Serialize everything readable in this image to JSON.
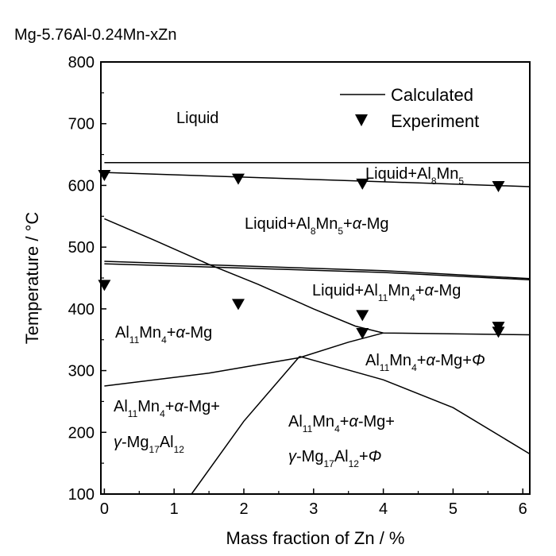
{
  "chart_data": {
    "type": "line",
    "title": "Mg-5.76Al-0.24Mn-xZn",
    "xlabel": "Mass fraction of Zn / %",
    "ylabel": "Temperature / °C",
    "xlim": [
      -0.05,
      6.1
    ],
    "ylim": [
      100,
      800
    ],
    "xticks": [
      0,
      1,
      2,
      3,
      4,
      5,
      6
    ],
    "yticks": [
      100,
      200,
      300,
      400,
      500,
      600,
      700,
      800
    ],
    "grid": false,
    "legend": {
      "placement": "top-right",
      "entries": [
        {
          "name": "Calculated",
          "marker": "line"
        },
        {
          "name": "Experiment",
          "marker": "down-triangle"
        }
      ]
    },
    "calculated_lines": [
      {
        "x": [
          0,
          6.1
        ],
        "y": [
          637,
          637
        ]
      },
      {
        "x": [
          0,
          6.1
        ],
        "y": [
          621,
          598
        ]
      },
      {
        "x": [
          0,
          4.0,
          6.1
        ],
        "y": [
          477,
          462,
          449
        ]
      },
      {
        "x": [
          0,
          4.0,
          6.1
        ],
        "y": [
          473,
          459,
          447
        ]
      },
      {
        "x": [
          0,
          0.7,
          1.5,
          2.2,
          3.0,
          3.6,
          4.0,
          6.1
        ],
        "y": [
          546,
          512,
          472,
          440,
          400,
          372,
          361,
          358
        ]
      },
      {
        "x": [
          0,
          1.5,
          2.8,
          3.5,
          4.0
        ],
        "y": [
          275,
          296,
          321,
          346,
          361
        ]
      },
      {
        "x": [
          1.25,
          2.0,
          2.8
        ],
        "y": [
          100,
          218,
          323
        ]
      },
      {
        "x": [
          2.8,
          4.0,
          5.0,
          6.1
        ],
        "y": [
          323,
          285,
          240,
          165
        ]
      }
    ],
    "experiment_points": [
      {
        "x": 0.0,
        "y": 616
      },
      {
        "x": 1.92,
        "y": 610
      },
      {
        "x": 3.7,
        "y": 602
      },
      {
        "x": 5.65,
        "y": 598
      },
      {
        "x": 0.0,
        "y": 438
      },
      {
        "x": 1.92,
        "y": 407
      },
      {
        "x": 3.7,
        "y": 389
      },
      {
        "x": 3.7,
        "y": 360
      },
      {
        "x": 5.65,
        "y": 370
      },
      {
        "x": 5.65,
        "y": 362
      }
    ]
  },
  "regions": {
    "liquid": "Liquid",
    "liquid_al8mn5": "Liquid+Al8Mn5",
    "liquid_al8mn5_mg": "Liquid+Al8Mn5+α-Mg",
    "liquid_al11mn4_mg": "Liquid+Al11Mn4+α-Mg",
    "al11mn4_mg": "Al11Mn4+α-Mg",
    "al11mn4_mg_phi": "Al11Mn4+α-Mg+Φ",
    "al11mn4_mg_gamma": "Al11Mn4+α-Mg+γ-Mg17Al12",
    "al11mn4_mg_gamma_phi": "Al11Mn4+α-Mg+γ-Mg17Al12+Φ"
  }
}
